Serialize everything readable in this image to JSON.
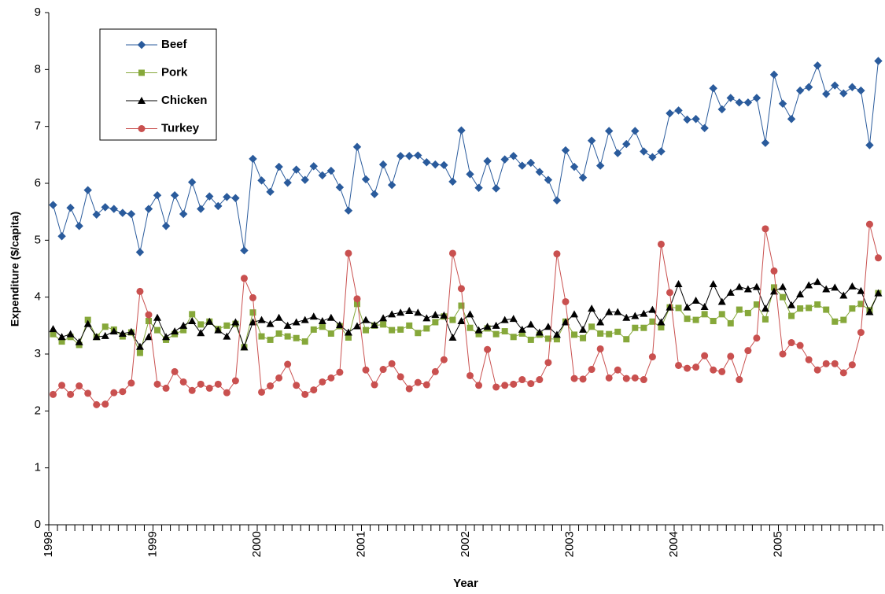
{
  "chart_data": {
    "type": "line",
    "xlabel": "Year",
    "ylabel": "Expenditure ($/capita)",
    "categories": [
      "1998",
      null,
      null,
      null,
      null,
      null,
      null,
      null,
      null,
      null,
      null,
      null,
      "1999",
      null,
      null,
      null,
      null,
      null,
      null,
      null,
      null,
      null,
      null,
      null,
      "2000",
      null,
      null,
      null,
      null,
      null,
      null,
      null,
      null,
      null,
      null,
      null,
      "2001",
      null,
      null,
      null,
      null,
      null,
      null,
      null,
      null,
      null,
      null,
      null,
      "2002",
      null,
      null,
      null,
      null,
      null,
      null,
      null,
      null,
      null,
      null,
      null,
      "2003",
      null,
      null,
      null,
      null,
      null,
      null,
      null,
      null,
      null,
      null,
      null,
      "2004",
      null,
      null,
      null,
      null,
      null,
      null,
      null,
      null,
      null,
      null,
      null,
      "2005",
      null,
      null,
      null,
      null,
      null,
      null,
      null,
      null,
      null,
      null,
      null
    ],
    "ylim": [
      0,
      9
    ],
    "yticks": [
      0,
      1,
      2,
      3,
      4,
      5,
      6,
      7,
      8,
      9
    ],
    "grid": false,
    "legend": "top-left",
    "series": [
      {
        "name": "Beef",
        "color": "#2a5b9c",
        "marker": "diamond",
        "values": [
          5.62,
          5.07,
          5.57,
          5.25,
          5.88,
          5.45,
          5.58,
          5.55,
          5.48,
          5.46,
          4.79,
          5.55,
          5.79,
          5.25,
          5.79,
          5.46,
          6.02,
          5.55,
          5.77,
          5.6,
          5.76,
          5.74,
          4.82,
          6.43,
          6.05,
          5.85,
          6.29,
          6.01,
          6.24,
          6.06,
          6.3,
          6.14,
          6.22,
          5.93,
          5.52,
          6.64,
          6.07,
          5.81,
          6.33,
          5.97,
          6.48,
          6.48,
          6.49,
          6.37,
          6.33,
          6.32,
          6.03,
          6.93,
          6.16,
          5.92,
          6.39,
          5.91,
          6.42,
          6.48,
          6.31,
          6.36,
          6.2,
          6.06,
          5.7,
          6.58,
          6.29,
          6.1,
          6.75,
          6.31,
          6.92,
          6.53,
          6.69,
          6.92,
          6.56,
          6.46,
          6.56,
          7.23,
          7.28,
          7.12,
          7.13,
          6.97,
          7.67,
          7.3,
          7.5,
          7.42,
          7.42,
          7.5,
          6.71,
          7.91,
          7.4,
          7.13,
          7.63,
          7.69,
          8.07,
          7.57,
          7.72,
          7.58,
          7.69,
          7.63,
          6.67,
          8.15
        ]
      },
      {
        "name": "Pork",
        "color": "#86a83a",
        "marker": "square",
        "values": [
          3.35,
          3.22,
          3.3,
          3.16,
          3.6,
          3.3,
          3.48,
          3.43,
          3.31,
          3.38,
          3.02,
          3.58,
          3.42,
          3.25,
          3.35,
          3.42,
          3.7,
          3.52,
          3.57,
          3.44,
          3.5,
          3.53,
          3.12,
          3.73,
          3.31,
          3.25,
          3.36,
          3.31,
          3.28,
          3.22,
          3.43,
          3.48,
          3.36,
          3.49,
          3.29,
          3.88,
          3.42,
          3.5,
          3.52,
          3.42,
          3.43,
          3.5,
          3.37,
          3.45,
          3.56,
          3.66,
          3.6,
          3.85,
          3.46,
          3.35,
          3.45,
          3.35,
          3.4,
          3.3,
          3.36,
          3.25,
          3.34,
          3.27,
          3.26,
          3.57,
          3.34,
          3.28,
          3.48,
          3.36,
          3.35,
          3.39,
          3.26,
          3.46,
          3.46,
          3.57,
          3.47,
          3.82,
          3.81,
          3.62,
          3.6,
          3.7,
          3.58,
          3.7,
          3.54,
          3.78,
          3.72,
          3.87,
          3.61,
          4.17,
          4.0,
          3.67,
          3.8,
          3.81,
          3.87,
          3.78,
          3.57,
          3.6,
          3.8,
          3.88,
          3.77,
          4.07
        ]
      },
      {
        "name": "Chicken",
        "color": "#000000",
        "marker": "triangle",
        "values": [
          3.44,
          3.3,
          3.35,
          3.21,
          3.53,
          3.3,
          3.32,
          3.4,
          3.36,
          3.39,
          3.13,
          3.3,
          3.64,
          3.3,
          3.4,
          3.5,
          3.58,
          3.37,
          3.57,
          3.42,
          3.31,
          3.56,
          3.12,
          3.56,
          3.6,
          3.53,
          3.64,
          3.5,
          3.56,
          3.6,
          3.66,
          3.58,
          3.64,
          3.51,
          3.38,
          3.49,
          3.6,
          3.51,
          3.63,
          3.7,
          3.73,
          3.76,
          3.73,
          3.63,
          3.69,
          3.68,
          3.29,
          3.58,
          3.7,
          3.42,
          3.48,
          3.5,
          3.6,
          3.62,
          3.43,
          3.52,
          3.38,
          3.48,
          3.34,
          3.56,
          3.7,
          3.43,
          3.8,
          3.56,
          3.74,
          3.74,
          3.64,
          3.67,
          3.71,
          3.78,
          3.56,
          3.82,
          4.23,
          3.82,
          3.94,
          3.83,
          4.23,
          3.92,
          4.08,
          4.18,
          4.14,
          4.18,
          3.8,
          4.1,
          4.18,
          3.86,
          4.05,
          4.21,
          4.27,
          4.14,
          4.17,
          4.03,
          4.19,
          4.11,
          3.74,
          4.07
        ]
      },
      {
        "name": "Turkey",
        "color": "#c9504f",
        "marker": "circle",
        "values": [
          2.29,
          2.45,
          2.29,
          2.44,
          2.31,
          2.11,
          2.12,
          2.32,
          2.34,
          2.49,
          4.1,
          3.69,
          2.47,
          2.4,
          2.69,
          2.51,
          2.36,
          2.47,
          2.4,
          2.47,
          2.32,
          2.53,
          4.33,
          3.99,
          2.33,
          2.44,
          2.58,
          2.82,
          2.45,
          2.29,
          2.37,
          2.51,
          2.58,
          2.68,
          4.77,
          3.97,
          2.72,
          2.46,
          2.73,
          2.83,
          2.6,
          2.39,
          2.5,
          2.46,
          2.69,
          2.9,
          4.77,
          4.15,
          2.62,
          2.45,
          3.08,
          2.42,
          2.45,
          2.47,
          2.55,
          2.48,
          2.55,
          2.85,
          4.76,
          3.92,
          2.57,
          2.56,
          2.73,
          3.09,
          2.58,
          2.72,
          2.57,
          2.58,
          2.55,
          2.95,
          4.93,
          4.08,
          2.8,
          2.75,
          2.77,
          2.97,
          2.72,
          2.69,
          2.96,
          2.55,
          3.06,
          3.28,
          5.2,
          4.46,
          3.0,
          3.2,
          3.15,
          2.9,
          2.72,
          2.83,
          2.83,
          2.67,
          2.81,
          3.38,
          5.28,
          4.69
        ]
      }
    ]
  }
}
